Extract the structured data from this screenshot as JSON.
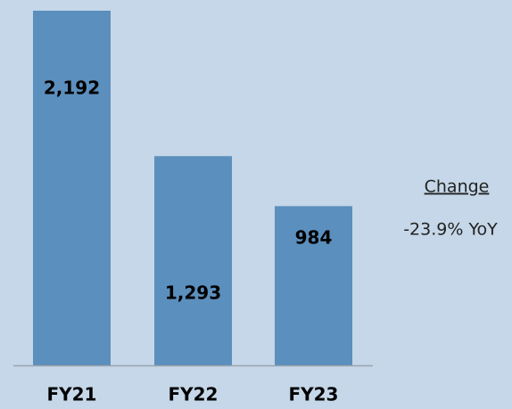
{
  "chart_data": {
    "type": "bar",
    "categories": [
      "FY21",
      "FY22",
      "FY23"
    ],
    "values": [
      2192,
      1293,
      984
    ],
    "value_labels": [
      "2,192",
      "1,293",
      "984"
    ],
    "color": "#5b8fbd",
    "annotations": [
      "Change",
      "-23.9% YoY"
    ]
  }
}
